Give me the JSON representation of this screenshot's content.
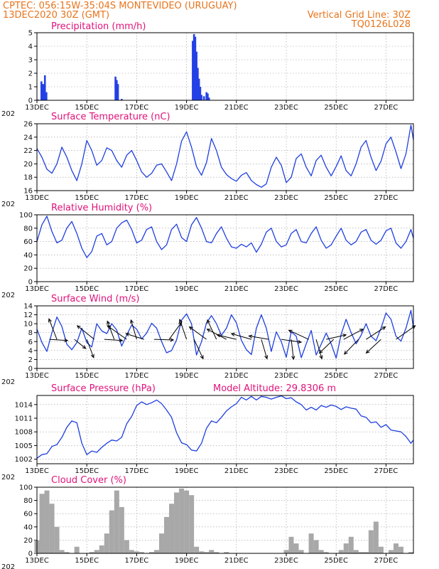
{
  "header": {
    "line1_left": "CPTEC:    056:15W-35:04S   MONTEVIDEO (URUGUAY)",
    "line2_left": "13DEC2020 30Z (GMT)",
    "line2_right": "Vertical Grid Line: 30Z",
    "line3_right": "TQ0126L028"
  },
  "time_axis": {
    "start_day": 13,
    "end_day": 28.1,
    "tick_days": [
      13,
      15,
      17,
      19,
      21,
      23,
      25,
      27
    ],
    "tick_labels": [
      "13DEC",
      "15DEC",
      "17DEC",
      "19DEC",
      "21DEC",
      "23DEC",
      "25DEC",
      "27DEC"
    ],
    "axis_start_label": "202"
  },
  "colors": {
    "header": "#e8741c",
    "titles": "#e0127a",
    "series": "#1f3fe0",
    "bars": "#2340e6",
    "cloud": "#a8a8a8",
    "frame": "#000000"
  },
  "chart_data": [
    {
      "id": "precip",
      "type": "bar",
      "title": "Precipitation  (mm/h)",
      "ylim": [
        0,
        5
      ],
      "yticks": [
        0,
        1,
        2,
        3,
        4,
        5
      ],
      "grid": true,
      "x": [
        13.05,
        13.18,
        13.25,
        13.32,
        13.38,
        16.15,
        16.2,
        16.25,
        16.4,
        19.25,
        19.3,
        19.35,
        19.4,
        19.45,
        19.5,
        19.55,
        19.6,
        19.7,
        19.8,
        19.85,
        19.9
      ],
      "values": [
        0.05,
        1.4,
        1.2,
        1.85,
        0.6,
        1.75,
        1.5,
        1.2,
        0.1,
        4.4,
        4.9,
        4.7,
        3.6,
        2.4,
        1.6,
        1.0,
        0.4,
        0.3,
        0.6,
        0.5,
        0.2
      ]
    },
    {
      "id": "temp",
      "type": "line",
      "title": "Surface Temperature (nC)",
      "ylim": [
        16,
        26
      ],
      "yticks": [
        16,
        18,
        20,
        22,
        24,
        26
      ],
      "grid": true,
      "x": [
        13.0,
        13.2,
        13.4,
        13.6,
        13.8,
        14.0,
        14.2,
        14.4,
        14.6,
        14.8,
        15.0,
        15.2,
        15.4,
        15.6,
        15.8,
        16.0,
        16.2,
        16.4,
        16.6,
        16.8,
        17.0,
        17.2,
        17.4,
        17.6,
        17.8,
        18.0,
        18.2,
        18.4,
        18.6,
        18.8,
        19.0,
        19.2,
        19.4,
        19.6,
        19.8,
        20.0,
        20.2,
        20.4,
        20.6,
        20.8,
        21.0,
        21.2,
        21.4,
        21.6,
        21.8,
        22.0,
        22.2,
        22.4,
        22.6,
        22.8,
        23.0,
        23.2,
        23.4,
        23.6,
        23.8,
        24.0,
        24.2,
        24.4,
        24.6,
        24.8,
        25.0,
        25.2,
        25.4,
        25.6,
        25.8,
        26.0,
        26.2,
        26.4,
        26.6,
        26.8,
        27.0,
        27.2,
        27.4,
        27.6,
        27.8,
        28.0,
        28.1
      ],
      "values": [
        22.3,
        21.0,
        19.2,
        18.6,
        20.0,
        22.5,
        21.0,
        19.0,
        17.5,
        20.0,
        23.5,
        22.0,
        19.8,
        20.5,
        22.4,
        22.0,
        20.5,
        19.5,
        21.3,
        22.0,
        20.5,
        18.8,
        18.0,
        18.6,
        19.8,
        20.0,
        18.8,
        17.5,
        20.0,
        23.4,
        24.8,
        22.5,
        19.6,
        18.3,
        20.2,
        23.8,
        22.0,
        19.5,
        18.4,
        17.8,
        17.4,
        18.3,
        18.7,
        17.5,
        16.9,
        16.5,
        17.0,
        19.5,
        21.0,
        19.8,
        17.2,
        18.0,
        20.8,
        21.5,
        19.5,
        18.2,
        20.5,
        21.3,
        19.5,
        18.2,
        19.6,
        21.2,
        19.0,
        18.2,
        20.0,
        22.5,
        23.5,
        21.0,
        19.0,
        20.4,
        23.0,
        24.0,
        21.8,
        19.3,
        21.5,
        25.8,
        23.6
      ]
    },
    {
      "id": "rh",
      "type": "line",
      "title": "Relative Humidity  (%)",
      "ylim": [
        0,
        100
      ],
      "yticks": [
        0,
        20,
        40,
        60,
        80,
        100
      ],
      "grid": true,
      "x": [
        13.0,
        13.2,
        13.4,
        13.6,
        13.8,
        14.0,
        14.2,
        14.4,
        14.6,
        14.8,
        15.0,
        15.2,
        15.4,
        15.6,
        15.8,
        16.0,
        16.2,
        16.4,
        16.6,
        16.8,
        17.0,
        17.2,
        17.4,
        17.6,
        17.8,
        18.0,
        18.2,
        18.4,
        18.6,
        18.8,
        19.0,
        19.2,
        19.4,
        19.6,
        19.8,
        20.0,
        20.2,
        20.4,
        20.6,
        20.8,
        21.0,
        21.2,
        21.4,
        21.6,
        21.8,
        22.0,
        22.2,
        22.4,
        22.6,
        22.8,
        23.0,
        23.2,
        23.4,
        23.6,
        23.8,
        24.0,
        24.2,
        24.4,
        24.6,
        24.8,
        25.0,
        25.2,
        25.4,
        25.6,
        25.8,
        26.0,
        26.2,
        26.4,
        26.6,
        26.8,
        27.0,
        27.2,
        27.4,
        27.6,
        27.8,
        28.0,
        28.1
      ],
      "values": [
        60,
        85,
        98,
        75,
        58,
        62,
        80,
        90,
        72,
        50,
        36,
        45,
        68,
        72,
        55,
        60,
        80,
        88,
        92,
        78,
        58,
        62,
        78,
        82,
        60,
        48,
        55,
        78,
        86,
        66,
        60,
        85,
        96,
        80,
        60,
        58,
        72,
        82,
        65,
        52,
        50,
        56,
        52,
        58,
        44,
        56,
        74,
        80,
        60,
        52,
        55,
        72,
        78,
        60,
        58,
        72,
        82,
        62,
        50,
        55,
        68,
        80,
        62,
        55,
        60,
        74,
        78,
        62,
        56,
        62,
        76,
        80,
        58,
        50,
        60,
        78,
        65
      ]
    },
    {
      "id": "wind",
      "type": "line",
      "title": "Surface Wind  (m/s)",
      "ylim": [
        0,
        14
      ],
      "yticks": [
        0,
        2,
        4,
        6,
        8,
        10,
        12,
        14
      ],
      "grid": true,
      "x": [
        13.0,
        13.2,
        13.4,
        13.6,
        13.8,
        14.0,
        14.2,
        14.4,
        14.6,
        14.8,
        15.0,
        15.2,
        15.4,
        15.6,
        15.8,
        16.0,
        16.2,
        16.4,
        16.6,
        16.8,
        17.0,
        17.2,
        17.4,
        17.6,
        17.8,
        18.0,
        18.2,
        18.4,
        18.6,
        18.8,
        19.0,
        19.2,
        19.4,
        19.6,
        19.8,
        20.0,
        20.2,
        20.4,
        20.6,
        20.8,
        21.0,
        21.2,
        21.4,
        21.6,
        21.8,
        22.0,
        22.2,
        22.4,
        22.6,
        22.8,
        23.0,
        23.2,
        23.4,
        23.6,
        23.8,
        24.0,
        24.2,
        24.4,
        24.6,
        24.8,
        25.0,
        25.2,
        25.4,
        25.6,
        25.8,
        26.0,
        26.2,
        26.4,
        26.6,
        26.8,
        27.0,
        27.2,
        27.4,
        27.6,
        27.8,
        28.0,
        28.1
      ],
      "values": [
        8.8,
        5.8,
        3.8,
        8.0,
        11.5,
        9.4,
        5.4,
        4.2,
        5.8,
        9.0,
        5.8,
        4.8,
        10.0,
        8.4,
        7.8,
        10.0,
        8.6,
        5.0,
        7.5,
        9.7,
        8.8,
        6.6,
        7.9,
        10.1,
        9.0,
        6.0,
        3.5,
        4.0,
        6.4,
        10.8,
        12.2,
        10.0,
        3.0,
        6.0,
        10.2,
        11.8,
        10.0,
        7.4,
        9.0,
        12.0,
        10.2,
        6.3,
        4.2,
        3.1,
        9.0,
        12.0,
        9.0,
        3.8,
        8.2,
        6.0,
        2.5,
        8.2,
        7.2,
        2.4,
        5.5,
        8.5,
        3.0,
        5.4,
        7.9,
        5.5,
        2.3,
        7.6,
        11.0,
        8.0,
        5.5,
        7.4,
        10.0,
        7.2,
        6.2,
        9.0,
        12.4,
        11.0,
        7.2,
        6.1,
        9.0,
        13.0,
        9.0
      ],
      "arrows": [
        {
          "x": 13.5,
          "u": 3.2,
          "v": -0.2
        },
        {
          "x": 13.8,
          "u": -1.4,
          "v": 3.6
        },
        {
          "x": 14.5,
          "u": 2.0,
          "v": -1.6
        },
        {
          "x": 15.0,
          "u": 1.2,
          "v": -3.2
        },
        {
          "x": 15.3,
          "u": -3.0,
          "v": 2.4
        },
        {
          "x": 15.7,
          "u": 3.2,
          "v": -0.2
        },
        {
          "x": 16.1,
          "u": -1.2,
          "v": 3.2
        },
        {
          "x": 16.6,
          "u": -3.4,
          "v": 2.4
        },
        {
          "x": 17.0,
          "u": -1.0,
          "v": 3.4
        },
        {
          "x": 17.3,
          "u": -3.2,
          "v": 1.0
        },
        {
          "x": 17.7,
          "u": 3.4,
          "v": -0.1
        },
        {
          "x": 18.3,
          "u": 2.2,
          "v": 3.0
        },
        {
          "x": 19.0,
          "u": -1.2,
          "v": 3.5
        },
        {
          "x": 19.3,
          "u": 1.6,
          "v": -3.4
        },
        {
          "x": 19.8,
          "u": -3.0,
          "v": 2.2
        },
        {
          "x": 20.2,
          "u": -1.6,
          "v": 3.4
        },
        {
          "x": 20.6,
          "u": -3.4,
          "v": 1.8
        },
        {
          "x": 21.0,
          "u": -3.4,
          "v": 0.8
        },
        {
          "x": 21.6,
          "u": -3.5,
          "v": 1.0
        },
        {
          "x": 22.0,
          "u": 1.0,
          "v": -3.4
        },
        {
          "x": 22.3,
          "u": -3.5,
          "v": 0.6
        },
        {
          "x": 22.8,
          "u": 3.5,
          "v": -0.5
        },
        {
          "x": 23.2,
          "u": 0.4,
          "v": -3.5
        },
        {
          "x": 23.9,
          "u": -3.5,
          "v": 1.6
        },
        {
          "x": 24.2,
          "u": 1.0,
          "v": -3.4
        },
        {
          "x": 24.6,
          "u": 3.5,
          "v": 0.8
        },
        {
          "x": 24.9,
          "u": -2.5,
          "v": -2.4
        },
        {
          "x": 25.3,
          "u": 3.4,
          "v": 1.8
        },
        {
          "x": 25.9,
          "u": -2.5,
          "v": -2.6
        },
        {
          "x": 26.2,
          "u": 3.4,
          "v": 2.2
        },
        {
          "x": 26.8,
          "u": -2.6,
          "v": -2.4
        },
        {
          "x": 27.4,
          "u": 3.4,
          "v": 2.4
        }
      ]
    },
    {
      "id": "pres",
      "type": "line",
      "title": "Surface Pressure (hPa)",
      "annotation": "Model Altitude: 29.8306  m",
      "ylim": [
        1001,
        1016
      ],
      "yticks": [
        1002,
        1005,
        1008,
        1011,
        1014
      ],
      "grid": true,
      "x": [
        13.0,
        13.2,
        13.4,
        13.6,
        13.8,
        14.0,
        14.2,
        14.4,
        14.6,
        14.8,
        15.0,
        15.2,
        15.4,
        15.6,
        15.8,
        16.0,
        16.2,
        16.4,
        16.6,
        16.8,
        17.0,
        17.2,
        17.4,
        17.6,
        17.8,
        18.0,
        18.2,
        18.4,
        18.6,
        18.8,
        19.0,
        19.2,
        19.4,
        19.6,
        19.8,
        20.0,
        20.2,
        20.4,
        20.6,
        20.8,
        21.0,
        21.2,
        21.4,
        21.6,
        21.8,
        22.0,
        22.2,
        22.4,
        22.6,
        22.8,
        23.0,
        23.2,
        23.4,
        23.6,
        23.8,
        24.0,
        24.2,
        24.4,
        24.6,
        24.8,
        25.0,
        25.2,
        25.4,
        25.6,
        25.8,
        26.0,
        26.2,
        26.4,
        26.6,
        26.8,
        27.0,
        27.2,
        27.4,
        27.6,
        27.8,
        28.0,
        28.1
      ],
      "values": [
        1002.2,
        1003.0,
        1003.2,
        1004.8,
        1005.2,
        1006.8,
        1009.0,
        1010.4,
        1010.0,
        1005.5,
        1003.0,
        1003.8,
        1003.5,
        1004.6,
        1005.5,
        1006.2,
        1006.0,
        1006.8,
        1009.8,
        1011.4,
        1013.8,
        1014.6,
        1014.0,
        1014.4,
        1015.0,
        1014.2,
        1012.8,
        1011.2,
        1007.8,
        1005.6,
        1005.2,
        1004.0,
        1003.8,
        1005.5,
        1008.8,
        1010.4,
        1010.0,
        1011.2,
        1012.6,
        1013.5,
        1014.2,
        1015.6,
        1015.0,
        1015.8,
        1015.0,
        1015.8,
        1015.6,
        1015.2,
        1015.6,
        1015.9,
        1015.3,
        1015.5,
        1014.6,
        1014.0,
        1012.8,
        1013.4,
        1012.8,
        1013.8,
        1013.4,
        1013.9,
        1013.6,
        1012.9,
        1013.5,
        1013.2,
        1013.0,
        1011.5,
        1011.2,
        1010.0,
        1010.2,
        1009.0,
        1009.6,
        1008.4,
        1008.2,
        1008.0,
        1007.0,
        1005.5,
        1006.2
      ]
    },
    {
      "id": "cloud",
      "type": "area",
      "title": "Cloud Cover  (%)",
      "ylim": [
        0,
        100
      ],
      "yticks": [
        0,
        20,
        40,
        60,
        80,
        100
      ],
      "grid": true,
      "x": [
        13.0,
        13.2,
        13.4,
        13.6,
        13.8,
        14.0,
        14.2,
        14.4,
        14.6,
        14.8,
        15.0,
        15.2,
        15.4,
        15.6,
        15.8,
        16.0,
        16.2,
        16.4,
        16.6,
        16.8,
        17.0,
        17.2,
        17.4,
        17.6,
        17.8,
        18.0,
        18.2,
        18.4,
        18.6,
        18.8,
        19.0,
        19.2,
        19.4,
        19.6,
        19.8,
        20.0,
        20.2,
        20.4,
        20.6,
        20.8,
        21.0,
        21.2,
        21.4,
        21.6,
        21.8,
        22.0,
        22.2,
        22.4,
        22.6,
        22.8,
        23.0,
        23.2,
        23.4,
        23.6,
        23.8,
        24.0,
        24.2,
        24.4,
        24.6,
        24.8,
        25.0,
        25.2,
        25.4,
        25.6,
        25.8,
        26.0,
        26.2,
        26.4,
        26.6,
        26.8,
        27.0,
        27.2,
        27.4,
        27.6,
        27.8,
        28.0,
        28.1
      ],
      "values": [
        20,
        90,
        95,
        75,
        40,
        5,
        2,
        0,
        10,
        0,
        0,
        2,
        5,
        12,
        30,
        65,
        95,
        70,
        20,
        5,
        3,
        2,
        0,
        2,
        5,
        30,
        55,
        75,
        92,
        98,
        95,
        88,
        10,
        3,
        2,
        5,
        2,
        0,
        2,
        0,
        0,
        0,
        0,
        0,
        0,
        0,
        0,
        0,
        0,
        0,
        5,
        25,
        15,
        5,
        0,
        30,
        20,
        5,
        2,
        0,
        0,
        5,
        15,
        25,
        5,
        2,
        2,
        35,
        48,
        10,
        0,
        5,
        15,
        10,
        0,
        2,
        0
      ]
    }
  ]
}
